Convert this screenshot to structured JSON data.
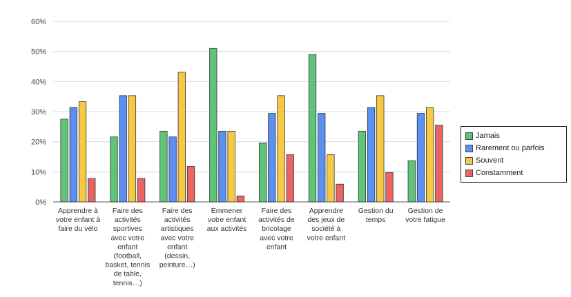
{
  "chart_data": {
    "type": "bar",
    "title": "",
    "xlabel": "",
    "ylabel": "",
    "ylim": [
      0,
      60
    ],
    "yticks": [
      "0%",
      "10%",
      "20%",
      "30%",
      "40%",
      "50%",
      "60%"
    ],
    "grid": true,
    "legend_position": "right",
    "categories": [
      [
        "Apprendre à",
        "votre enfant à",
        "faire du vélo"
      ],
      [
        "Faire des",
        "activités",
        "sportives",
        "avec votre",
        "enfant",
        "(football,",
        "basket, tennis",
        "de table,",
        "tennis…)"
      ],
      [
        "Faire des",
        "activités",
        "artistiques",
        "avec votre",
        "enfant",
        "(dessin,",
        "peinture…)"
      ],
      [
        "Emmener",
        "votre enfant",
        "aux activités"
      ],
      [
        "Faire des",
        "activités de",
        "bricolage",
        "avec votre",
        "enfant"
      ],
      [
        "Apprendre",
        "des jeux de",
        "société à",
        "votre enfant"
      ],
      [
        "Gestion du",
        "temps"
      ],
      [
        "Gestion de",
        "votre fatigue"
      ]
    ],
    "series": [
      {
        "name": "Jamais",
        "color": "#5fc47a",
        "values": [
          27.5,
          21.6,
          23.5,
          51.0,
          19.6,
          49.0,
          23.5,
          13.7
        ]
      },
      {
        "name": "Rarement ou parfois",
        "color": "#5b8ff0",
        "values": [
          31.4,
          35.3,
          21.6,
          23.5,
          29.4,
          29.4,
          31.4,
          29.4
        ]
      },
      {
        "name": "Souvent",
        "color": "#f6c944",
        "values": [
          33.3,
          35.3,
          43.1,
          23.5,
          35.3,
          15.7,
          35.3,
          31.4
        ]
      },
      {
        "name": "Constamment",
        "color": "#ea6464",
        "values": [
          7.8,
          7.8,
          11.8,
          2.0,
          15.7,
          5.9,
          9.8,
          25.5
        ]
      }
    ]
  }
}
